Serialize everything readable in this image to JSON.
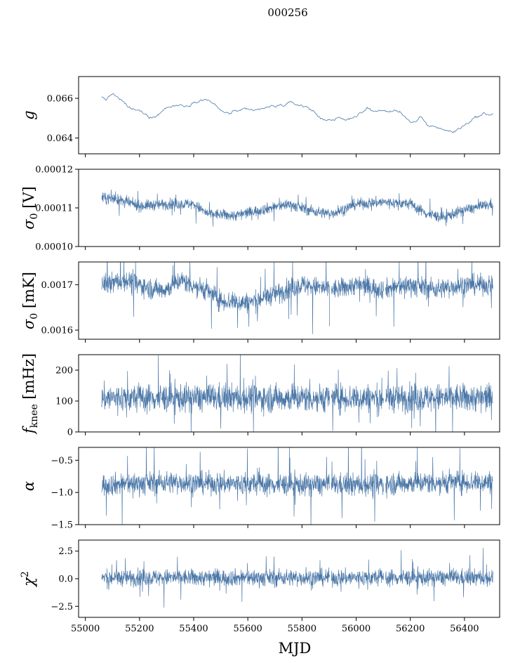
{
  "title": "000256",
  "xlabel": "MJD",
  "colors": {
    "series": "#4c78a8"
  },
  "x_ticks": [
    "55000",
    "55200",
    "55400",
    "55600",
    "55800",
    "56000",
    "56200",
    "56400"
  ],
  "chart_data": [
    {
      "type": "line",
      "name": "gain",
      "ylabel_text": "g",
      "ylabel_sub": "",
      "ylabel_unit": "",
      "x_range": [
        55060,
        56505
      ],
      "xlim": [
        54975,
        56530
      ],
      "ylim": [
        0.0632,
        0.0671
      ],
      "y_ticks": [
        0.064,
        0.066
      ],
      "y_tick_labels": [
        "0.064",
        "0.066"
      ],
      "gaps": [],
      "profile": [
        [
          55060,
          0.06605
        ],
        [
          55080,
          0.06595
        ],
        [
          55100,
          0.06625
        ],
        [
          55130,
          0.0659
        ],
        [
          55170,
          0.06545
        ],
        [
          55200,
          0.06535
        ],
        [
          55240,
          0.06505
        ],
        [
          55270,
          0.0652
        ],
        [
          55300,
          0.06555
        ],
        [
          55340,
          0.06565
        ],
        [
          55380,
          0.06565
        ],
        [
          55420,
          0.06595
        ],
        [
          55460,
          0.0659
        ],
        [
          55500,
          0.06535
        ],
        [
          55530,
          0.06525
        ],
        [
          55570,
          0.0654
        ],
        [
          55620,
          0.06535
        ],
        [
          55660,
          0.0655
        ],
        [
          55700,
          0.0656
        ],
        [
          55760,
          0.06575
        ],
        [
          55800,
          0.06565
        ],
        [
          55840,
          0.0654
        ],
        [
          55870,
          0.06495
        ],
        [
          55900,
          0.06495
        ],
        [
          55940,
          0.06495
        ],
        [
          55970,
          0.0649
        ],
        [
          56000,
          0.06515
        ],
        [
          56040,
          0.06545
        ],
        [
          56080,
          0.06535
        ],
        [
          56120,
          0.06535
        ],
        [
          56160,
          0.06535
        ],
        [
          56185,
          0.06505
        ],
        [
          56200,
          0.0648
        ],
        [
          56220,
          0.06475
        ],
        [
          56240,
          0.06505
        ],
        [
          56260,
          0.06465
        ],
        [
          56300,
          0.06455
        ],
        [
          56340,
          0.06435
        ],
        [
          56360,
          0.0643
        ],
        [
          56400,
          0.06465
        ],
        [
          56440,
          0.06505
        ],
        [
          56470,
          0.0652
        ],
        [
          56505,
          0.0652
        ]
      ],
      "noise": 6e-05,
      "spike_scale": 5e-05
    },
    {
      "type": "line",
      "name": "sigma0-volts",
      "ylabel_text": "σ",
      "ylabel_sub": "0",
      "ylabel_unit": " [V]",
      "x_range": [
        55060,
        56505
      ],
      "xlim": [
        54975,
        56530
      ],
      "ylim": [
        0.0001,
        0.00012
      ],
      "y_ticks": [
        0.0001,
        0.00011,
        0.00012
      ],
      "y_tick_labels": [
        "0.00010",
        "0.00011",
        "0.00012"
      ],
      "gaps": [],
      "profile": [
        [
          55060,
          0.0001125
        ],
        [
          55100,
          0.0001125
        ],
        [
          55200,
          0.0001105
        ],
        [
          55300,
          0.000111
        ],
        [
          55400,
          0.000111
        ],
        [
          55450,
          0.0001085
        ],
        [
          55550,
          0.000108
        ],
        [
          55650,
          0.0001095
        ],
        [
          55750,
          0.000111
        ],
        [
          55850,
          0.000109
        ],
        [
          55905,
          0.0001085
        ],
        [
          55930,
          0.000109
        ],
        [
          56000,
          0.000111
        ],
        [
          56100,
          0.0001115
        ],
        [
          56200,
          0.000111
        ],
        [
          56260,
          0.0001085
        ],
        [
          56320,
          0.0001075
        ],
        [
          56400,
          0.0001095
        ],
        [
          56505,
          0.000111
        ]
      ],
      "noise": 1.4e-06,
      "spike_scale": 1.8e-06
    },
    {
      "type": "line",
      "name": "sigma0-millikelvin",
      "ylabel_text": "σ",
      "ylabel_sub": "0",
      "ylabel_unit": " [mK]",
      "x_range": [
        55060,
        56505
      ],
      "xlim": [
        54975,
        56530
      ],
      "ylim": [
        0.00158,
        0.00175
      ],
      "y_ticks": [
        0.0016,
        0.0017
      ],
      "y_tick_labels": [
        "0.0016",
        "0.0017"
      ],
      "gaps": [
        55905,
        56105
      ],
      "profile": [
        [
          55060,
          0.0017
        ],
        [
          55150,
          0.00171
        ],
        [
          55250,
          0.00169
        ],
        [
          55300,
          0.00169
        ],
        [
          55350,
          0.00171
        ],
        [
          55440,
          0.00169
        ],
        [
          55500,
          0.001665
        ],
        [
          55600,
          0.00166
        ],
        [
          55700,
          0.00168
        ],
        [
          55800,
          0.0017
        ],
        [
          55900,
          0.00169
        ],
        [
          55930,
          0.00169
        ],
        [
          56000,
          0.0017
        ],
        [
          56100,
          0.00169
        ],
        [
          56200,
          0.0017
        ],
        [
          56300,
          0.00169
        ],
        [
          56400,
          0.0017
        ],
        [
          56505,
          0.0017
        ]
      ],
      "noise": 2.2e-05,
      "spike_scale": 4.5e-05
    },
    {
      "type": "line",
      "name": "fknee",
      "ylabel_text": "f",
      "ylabel_sub": "knee",
      "ylabel_unit": " [mHz]",
      "x_range": [
        55060,
        56505
      ],
      "xlim": [
        54975,
        56530
      ],
      "ylim": [
        0,
        250
      ],
      "y_ticks": [
        0,
        100,
        200
      ],
      "y_tick_labels": [
        "0",
        "100",
        "200"
      ],
      "gaps": [
        55905,
        56105
      ],
      "profile": [
        [
          55060,
          110
        ],
        [
          56505,
          110
        ]
      ],
      "noise": 45,
      "spike_scale": 60
    },
    {
      "type": "line",
      "name": "alpha",
      "ylabel_text": "α",
      "ylabel_sub": "",
      "ylabel_unit": "",
      "x_range": [
        55060,
        56505
      ],
      "xlim": [
        54975,
        56530
      ],
      "ylim": [
        -1.5,
        -0.3
      ],
      "y_ticks": [
        -1.5,
        -1.0,
        -0.5
      ],
      "y_tick_labels": [
        "−1.5",
        "−1.0",
        "−0.5"
      ],
      "gaps": [
        55905,
        56105
      ],
      "profile": [
        [
          55060,
          -0.88
        ],
        [
          55300,
          -0.84
        ],
        [
          55500,
          -0.86
        ],
        [
          55800,
          -0.88
        ],
        [
          56000,
          -0.88
        ],
        [
          56300,
          -0.84
        ],
        [
          56505,
          -0.84
        ]
      ],
      "noise": 0.17,
      "spike_scale": 0.35
    },
    {
      "type": "line",
      "name": "chi-squared",
      "ylabel_text": "χ",
      "ylabel_sub": "",
      "ylabel_sup": "2",
      "ylabel_unit": "",
      "x_range": [
        55060,
        56505
      ],
      "xlim": [
        54975,
        56530
      ],
      "ylim": [
        -3.5,
        3.5
      ],
      "y_ticks": [
        -2.5,
        0.0,
        2.5
      ],
      "y_tick_labels": [
        "−2.5",
        "0.0",
        "2.5"
      ],
      "gaps": [
        55905,
        56105
      ],
      "profile": [
        [
          55060,
          0.1
        ],
        [
          56505,
          0.1
        ]
      ],
      "noise": 0.75,
      "spike_scale": 1.1
    }
  ]
}
